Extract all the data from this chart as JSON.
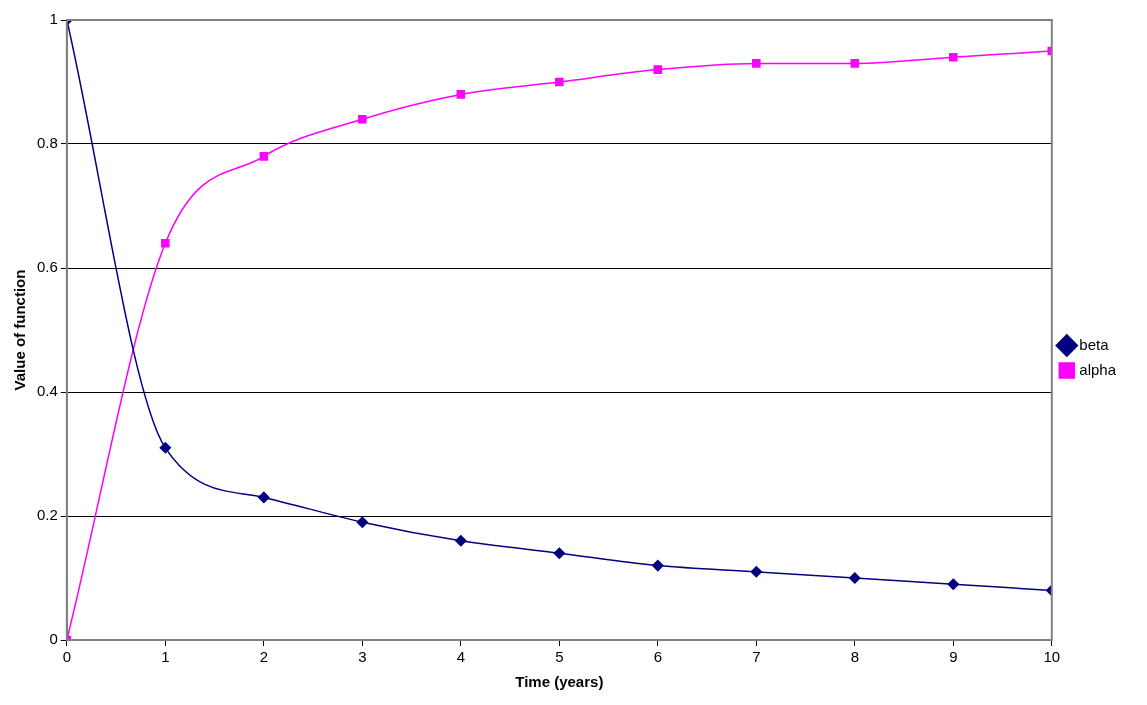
{
  "chart_data": {
    "type": "line",
    "xlabel": "Time (years)",
    "ylabel": "Value of function",
    "x": [
      0,
      1,
      2,
      3,
      4,
      5,
      6,
      7,
      8,
      9,
      10
    ],
    "series": [
      {
        "name": "beta",
        "color": "#000080",
        "marker": "diamond",
        "values": [
          1.0,
          0.31,
          0.23,
          0.19,
          0.16,
          0.14,
          0.12,
          0.11,
          0.1,
          0.09,
          0.08
        ]
      },
      {
        "name": "alpha",
        "color": "#ff00ff",
        "marker": "square",
        "values": [
          0,
          0.64,
          0.78,
          0.84,
          0.88,
          0.9,
          0.92,
          0.93,
          0.93,
          0.94,
          0.95
        ]
      }
    ],
    "xlim": [
      0,
      10
    ],
    "xticks": [
      0,
      1,
      2,
      3,
      4,
      5,
      6,
      7,
      8,
      9,
      10
    ],
    "ylim": [
      0,
      1
    ],
    "yticks": [
      0,
      0.2,
      0.4,
      0.6,
      0.8,
      1
    ],
    "grid": "y",
    "legend": "right",
    "line_style": "solid"
  }
}
